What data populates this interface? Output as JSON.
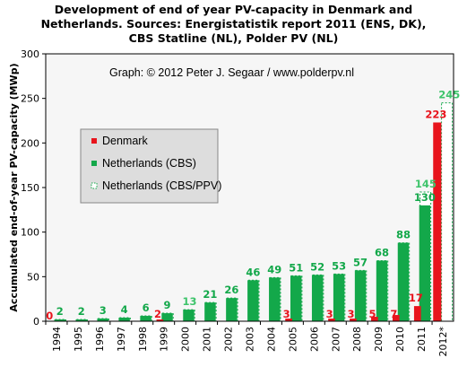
{
  "title_lines": [
    "Development of end of year PV-capacity in Denmark and",
    "Netherlands. Sources: Energistatistik report 2011 (ENS, DK),",
    "CBS Statline (NL), Polder PV (NL)"
  ],
  "credit": "Graph: © 2012 Peter J. Segaar / www.polderpv.nl",
  "colors": {
    "denmark": "#e8141c",
    "netherlands_cbs": "#13a84a",
    "netherlands_ppv_border": "#13a84a",
    "plot_bg": "#f6f6f6",
    "legend_bg": "#dddddd",
    "label_green": "#13a84a",
    "label_light_green": "#3ec46b",
    "label_red": "#e8141c"
  },
  "chart_data": {
    "type": "bar",
    "title": "Development of end of year PV-capacity in Denmark and Netherlands. Sources: Energistatistik report 2011 (ENS, DK), CBS Statline (NL), Polder PV (NL)",
    "xlabel": "",
    "ylabel": "Accumulated end-of-year PV-capacity (MWp)",
    "ylim": [
      0,
      300
    ],
    "yticks": [
      0,
      50,
      100,
      150,
      200,
      250,
      300
    ],
    "grid": false,
    "legend_position": "middle-left",
    "categories": [
      "1994",
      "1995",
      "1996",
      "1997",
      "1998",
      "1999",
      "2000",
      "2001",
      "2002",
      "2003",
      "2004",
      "2005",
      "2006",
      "2007",
      "2008",
      "2009",
      "2010",
      "2011",
      "2012*"
    ],
    "series": [
      {
        "name": "Denmark",
        "style": "solid-red",
        "values": [
          0,
          null,
          null,
          null,
          null,
          2,
          null,
          null,
          null,
          null,
          null,
          3,
          null,
          3,
          3,
          5,
          7,
          17,
          223
        ],
        "labels": [
          "0",
          "",
          "",
          "",
          "",
          "2",
          "",
          "",
          "",
          "",
          "",
          "3",
          "",
          "3",
          "3",
          "5",
          "7",
          "17",
          "223"
        ]
      },
      {
        "name": "Netherlands (CBS)",
        "style": "solid-green",
        "values": [
          2,
          2,
          3,
          4,
          6,
          9,
          13,
          21,
          26,
          46,
          49,
          51,
          52,
          53,
          57,
          68,
          88,
          130,
          null
        ],
        "labels": [
          "2",
          "2",
          "3",
          "4",
          "6",
          "9",
          "",
          "21",
          "26",
          "46",
          "49",
          "51",
          "52",
          "53",
          "57",
          "68",
          "88",
          "130",
          ""
        ]
      },
      {
        "name": "Netherlands (CBS/PPV)",
        "style": "dashed-outline-green",
        "values": [
          2,
          2,
          3,
          4,
          6,
          9,
          13,
          21,
          26,
          46,
          49,
          51,
          52,
          53,
          57,
          68,
          88,
          145,
          245
        ],
        "labels": [
          "",
          "",
          "",
          "",
          "",
          "",
          "13",
          "",
          "",
          "",
          "",
          "",
          "",
          "",
          "",
          "",
          "",
          "145",
          "245"
        ]
      }
    ]
  }
}
